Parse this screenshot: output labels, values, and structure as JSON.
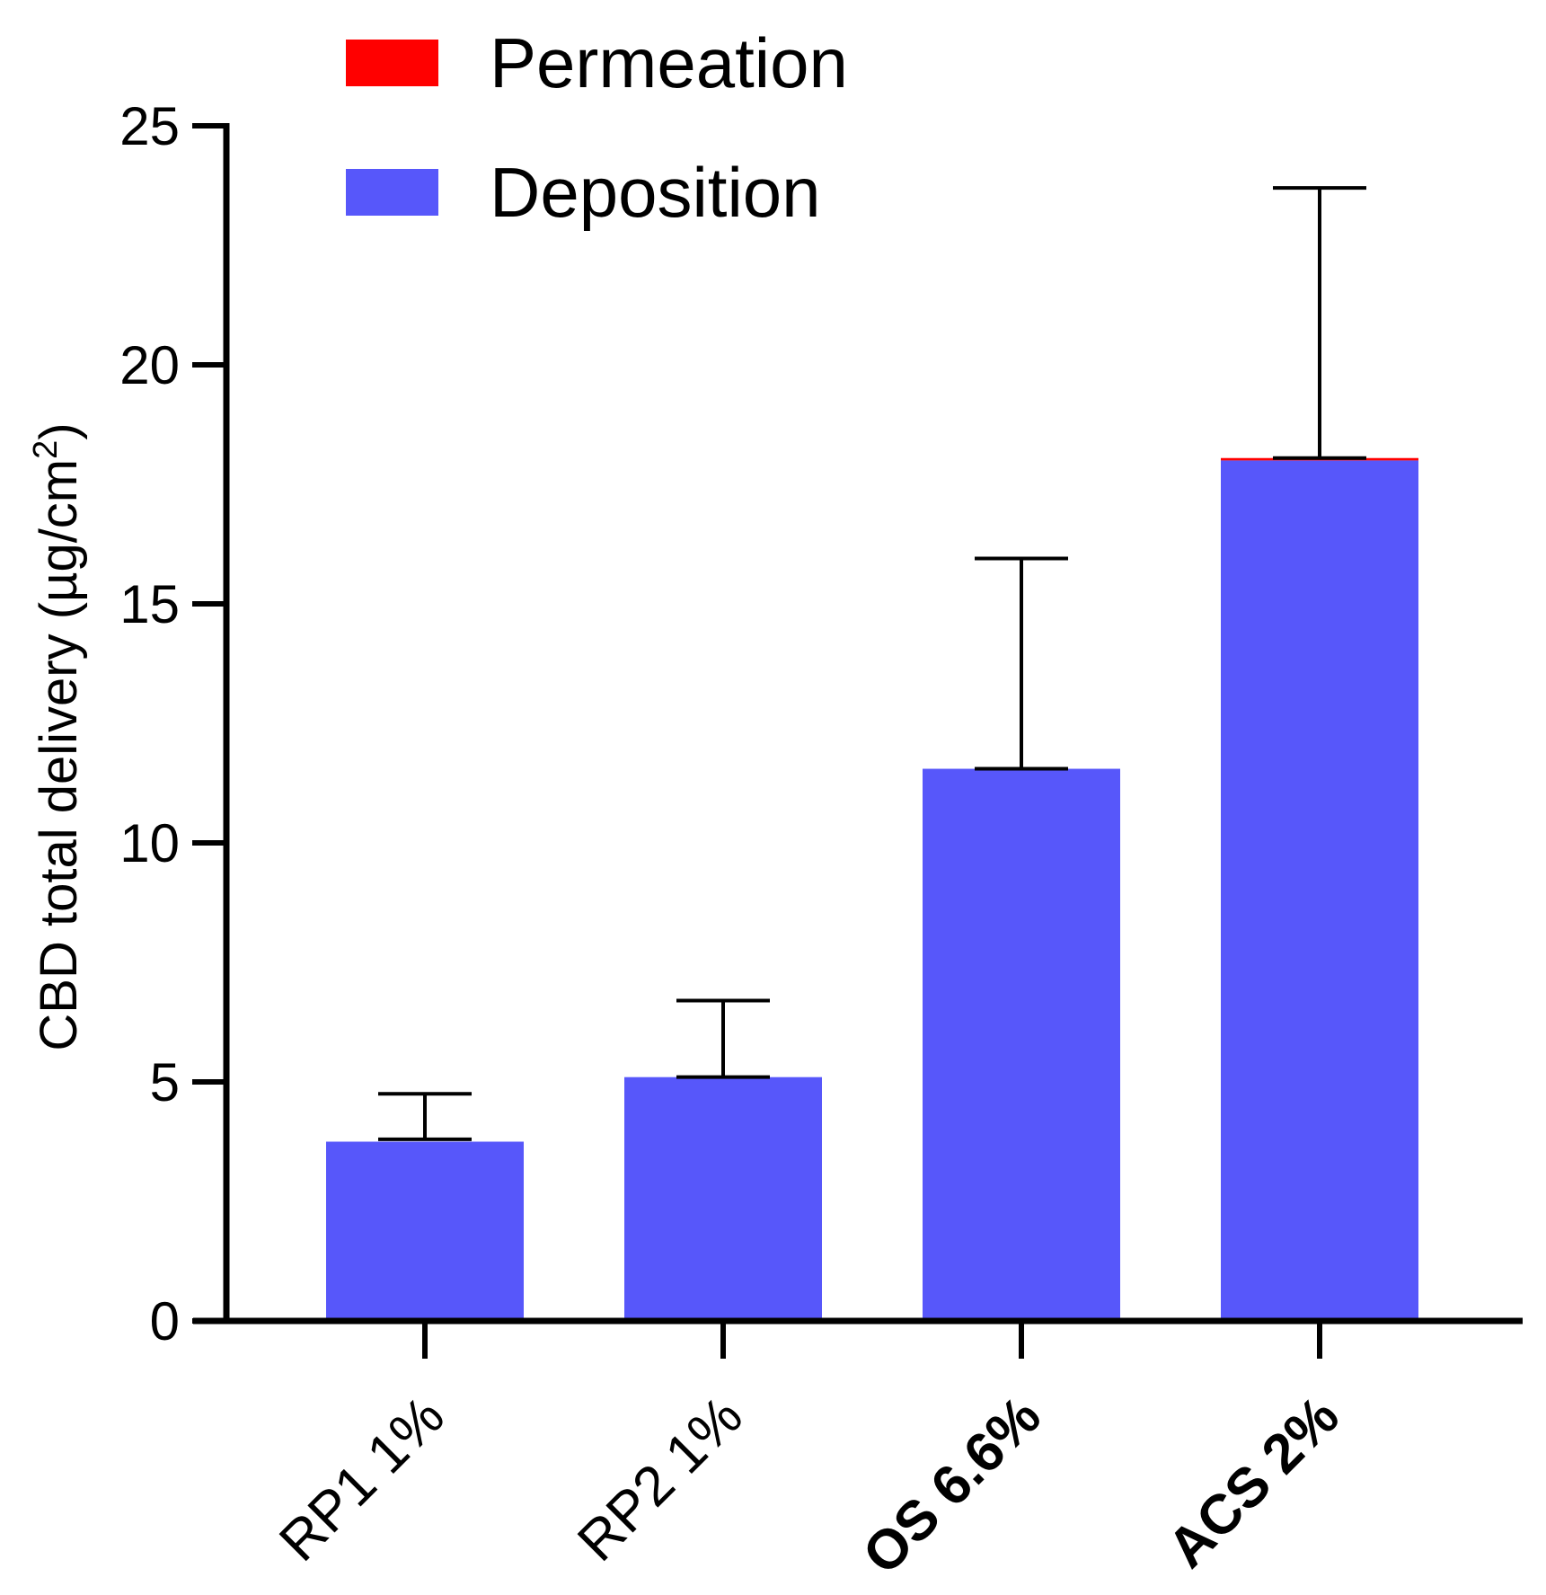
{
  "chart_data": {
    "type": "bar",
    "stacked": true,
    "title": "",
    "xlabel": "",
    "ylabel": "CBD total delivery (µg/cm",
    "ylabel_superscript": "2",
    "ylabel_suffix": ")",
    "ylim": [
      0,
      25
    ],
    "yticks": [
      0,
      5,
      10,
      15,
      20,
      25
    ],
    "categories": [
      "RP1 1%",
      "RP2 1%",
      "OS 6.6%",
      "ACS 2%"
    ],
    "categories_bold": [
      false,
      false,
      true,
      true
    ],
    "series": [
      {
        "name": "Permeation",
        "color": "#ff0000",
        "values": [
          0,
          0,
          0,
          0.05
        ]
      },
      {
        "name": "Deposition",
        "color": "#5757fa",
        "values": [
          3.75,
          5.1,
          11.55,
          18.0
        ]
      }
    ],
    "error_upper": [
      4.75,
      6.7,
      15.95,
      23.7
    ],
    "error_lower": [
      3.8,
      5.1,
      11.55,
      18.05
    ],
    "legend_position": "top"
  }
}
